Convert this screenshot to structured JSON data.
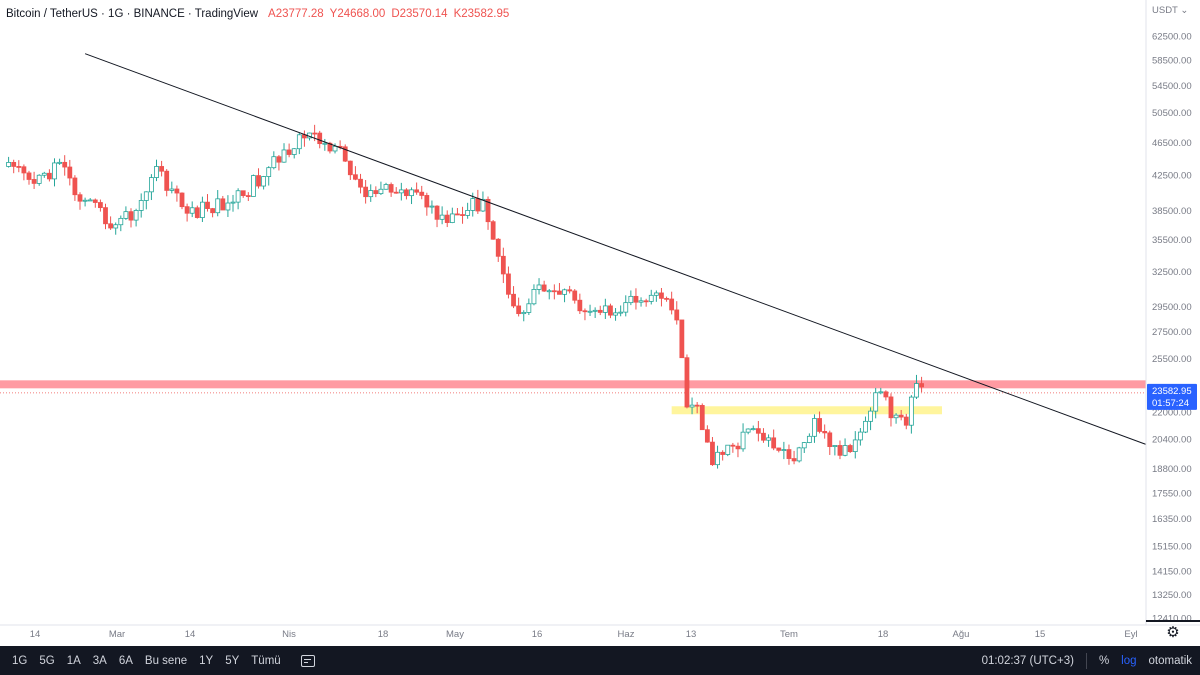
{
  "legend": {
    "title": "Bitcoin / TetherUS · 1G · BINANCE · TradingView",
    "open": "A23777.28",
    "high": "Y24668.00",
    "low": "D23570.14",
    "close": "K23582.95"
  },
  "chart_data": {
    "type": "candlestick",
    "title": "Bitcoin / TetherUS · 1G · BINANCE · TradingView",
    "log_scale": true,
    "currency_label": "USDT",
    "y_ticks": [
      62500,
      58500,
      54500,
      50500,
      46500,
      42500,
      38500,
      35500,
      32500,
      29500,
      27500,
      25500,
      22000,
      20400,
      18800,
      17550,
      16350,
      15150,
      14150,
      13250,
      12410
    ],
    "x_ticks": [
      "14",
      "Mar",
      "14",
      "Nis",
      "18",
      "May",
      "16",
      "Haz",
      "13",
      "Tem",
      "18",
      "Ağu",
      "15",
      "Eyl"
    ],
    "last_price": "23582.95",
    "countdown": "01:57:24",
    "colors": {
      "up": "#26a69a",
      "down": "#ef5350",
      "resistance_band": "#ff9aa2",
      "support_band": "#fff59d",
      "trendline": "#131722"
    },
    "resistance_band": {
      "y": 23750
    },
    "support_band": {
      "y": 22100,
      "x_start": "2022-06-10",
      "x_end": "2022-08-02"
    },
    "trendline": {
      "x1": "2022-02-15",
      "y1": 59500,
      "x2": "2022-09-11",
      "y2": 20100
    },
    "anchors": [
      {
        "date": "2022-01-30",
        "close": 43500
      },
      {
        "date": "2022-02-05",
        "close": 41500
      },
      {
        "date": "2022-02-10",
        "close": 44000
      },
      {
        "date": "2022-02-14",
        "close": 39500
      },
      {
        "date": "2022-02-21",
        "close": 37000
      },
      {
        "date": "2022-02-25",
        "close": 38500
      },
      {
        "date": "2022-03-01",
        "close": 43500
      },
      {
        "date": "2022-03-07",
        "close": 38200
      },
      {
        "date": "2022-03-15",
        "close": 39300
      },
      {
        "date": "2022-03-22",
        "close": 42300
      },
      {
        "date": "2022-03-29",
        "close": 47500
      },
      {
        "date": "2022-04-05",
        "close": 46000
      },
      {
        "date": "2022-04-11",
        "close": 40000
      },
      {
        "date": "2022-04-16",
        "close": 40500
      },
      {
        "date": "2022-04-21",
        "close": 40500
      },
      {
        "date": "2022-04-26",
        "close": 38000
      },
      {
        "date": "2022-05-01",
        "close": 38500
      },
      {
        "date": "2022-05-04",
        "close": 39700
      },
      {
        "date": "2022-05-09",
        "close": 30500
      },
      {
        "date": "2022-05-12",
        "close": 29000
      },
      {
        "date": "2022-05-15",
        "close": 31300
      },
      {
        "date": "2022-05-22",
        "close": 30000
      },
      {
        "date": "2022-05-27",
        "close": 29000
      },
      {
        "date": "2022-06-01",
        "close": 29800
      },
      {
        "date": "2022-06-05",
        "close": 29900
      },
      {
        "date": "2022-06-09",
        "close": 30100
      },
      {
        "date": "2022-06-11",
        "close": 28400
      },
      {
        "date": "2022-06-13",
        "close": 22300
      },
      {
        "date": "2022-06-15",
        "close": 22400
      },
      {
        "date": "2022-06-18",
        "close": 19000
      },
      {
        "date": "2022-06-22",
        "close": 20000
      },
      {
        "date": "2022-06-26",
        "close": 21000
      },
      {
        "date": "2022-06-30",
        "close": 19900
      },
      {
        "date": "2022-07-04",
        "close": 19200
      },
      {
        "date": "2022-07-08",
        "close": 21600
      },
      {
        "date": "2022-07-13",
        "close": 19500
      },
      {
        "date": "2022-07-17",
        "close": 20800
      },
      {
        "date": "2022-07-20",
        "close": 23200
      },
      {
        "date": "2022-07-26",
        "close": 21200
      },
      {
        "date": "2022-07-28",
        "close": 23800
      },
      {
        "date": "2022-07-29",
        "close": 23582.95
      }
    ]
  },
  "bottom_bar": {
    "timeframes": [
      "1G",
      "5G",
      "1A",
      "3A",
      "6A",
      "Bu sene",
      "1Y",
      "5Y",
      "Tümü"
    ],
    "clock": "01:02:37 (UTC+3)",
    "percent": "%",
    "log": "log",
    "auto": "otomatik"
  }
}
